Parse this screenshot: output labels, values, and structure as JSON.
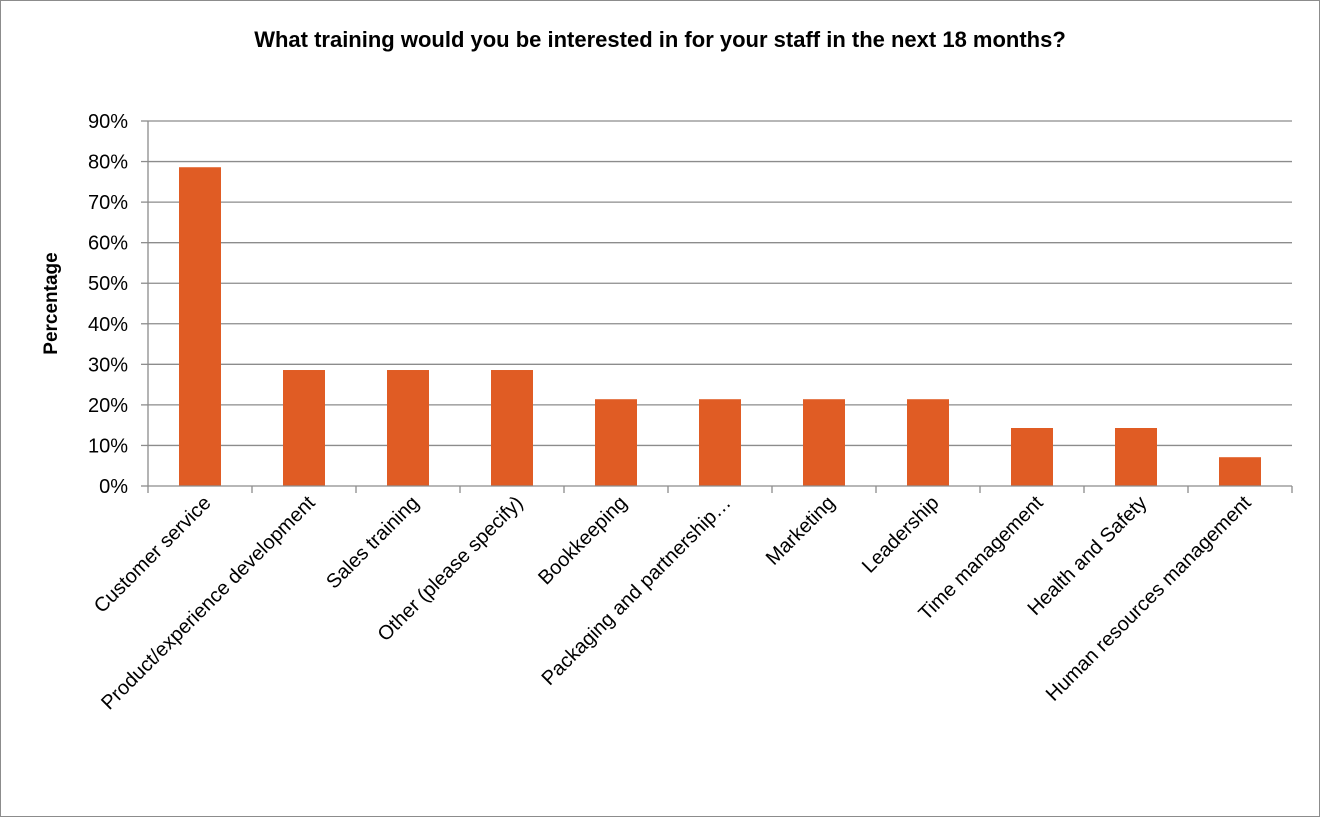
{
  "chart_data": {
    "type": "bar",
    "title": "What training would you be interested in for your staff in the next 18 months?",
    "xlabel": "",
    "ylabel": "Percentage",
    "ylim": [
      0,
      90
    ],
    "ytick_step": 10,
    "ytick_labels": [
      "0%",
      "10%",
      "20%",
      "30%",
      "40%",
      "50%",
      "60%",
      "70%",
      "80%",
      "90%"
    ],
    "grid": true,
    "legend": "none",
    "bar_color": "#e05c24",
    "categories": [
      "Customer service",
      "Product/experience development",
      "Sales training",
      "Other (please specify)",
      "Bookkeeping",
      "Packaging and partnership…",
      "Marketing",
      "Leadership",
      "Time management",
      "Health and Safety",
      "Human resources management"
    ],
    "values": [
      78.6,
      28.6,
      28.6,
      28.6,
      21.4,
      21.4,
      21.4,
      21.4,
      14.3,
      14.3,
      7.1
    ]
  }
}
